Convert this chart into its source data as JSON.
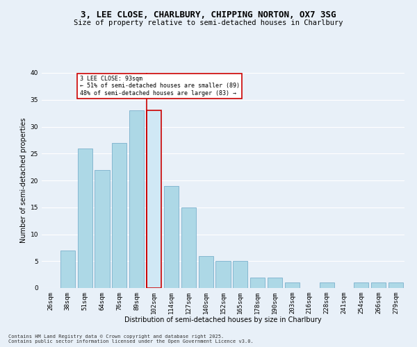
{
  "title": "3, LEE CLOSE, CHARLBURY, CHIPPING NORTON, OX7 3SG",
  "subtitle": "Size of property relative to semi-detached houses in Charlbury",
  "xlabel": "Distribution of semi-detached houses by size in Charlbury",
  "ylabel": "Number of semi-detached properties",
  "categories": [
    "26sqm",
    "38sqm",
    "51sqm",
    "64sqm",
    "76sqm",
    "89sqm",
    "102sqm",
    "114sqm",
    "127sqm",
    "140sqm",
    "152sqm",
    "165sqm",
    "178sqm",
    "190sqm",
    "203sqm",
    "216sqm",
    "228sqm",
    "241sqm",
    "254sqm",
    "266sqm",
    "279sqm"
  ],
  "values": [
    0,
    7,
    26,
    22,
    27,
    33,
    33,
    19,
    15,
    6,
    5,
    5,
    2,
    2,
    1,
    0,
    1,
    0,
    1,
    1,
    1
  ],
  "highlight_index": 6,
  "bar_color": "#add8e6",
  "bar_color_light": "#d0e8f5",
  "bar_edge_color": "#7ab0cc",
  "highlight_bar_edge_color": "#cc0000",
  "highlight_line_color": "#cc0000",
  "annotation_text": "3 LEE CLOSE: 93sqm\n← 51% of semi-detached houses are smaller (89)\n48% of semi-detached houses are larger (83) →",
  "annotation_box_color": "#ffffff",
  "annotation_box_edge_color": "#cc0000",
  "footer_text": "Contains HM Land Registry data © Crown copyright and database right 2025.\nContains public sector information licensed under the Open Government Licence v3.0.",
  "ylim": [
    0,
    40
  ],
  "yticks": [
    0,
    5,
    10,
    15,
    20,
    25,
    30,
    35,
    40
  ],
  "bg_color": "#e8f0f8",
  "grid_color": "#ffffff",
  "title_fontsize": 9,
  "subtitle_fontsize": 7.5,
  "axis_label_fontsize": 7,
  "tick_fontsize": 6.5,
  "annotation_fontsize": 6,
  "footer_fontsize": 5
}
